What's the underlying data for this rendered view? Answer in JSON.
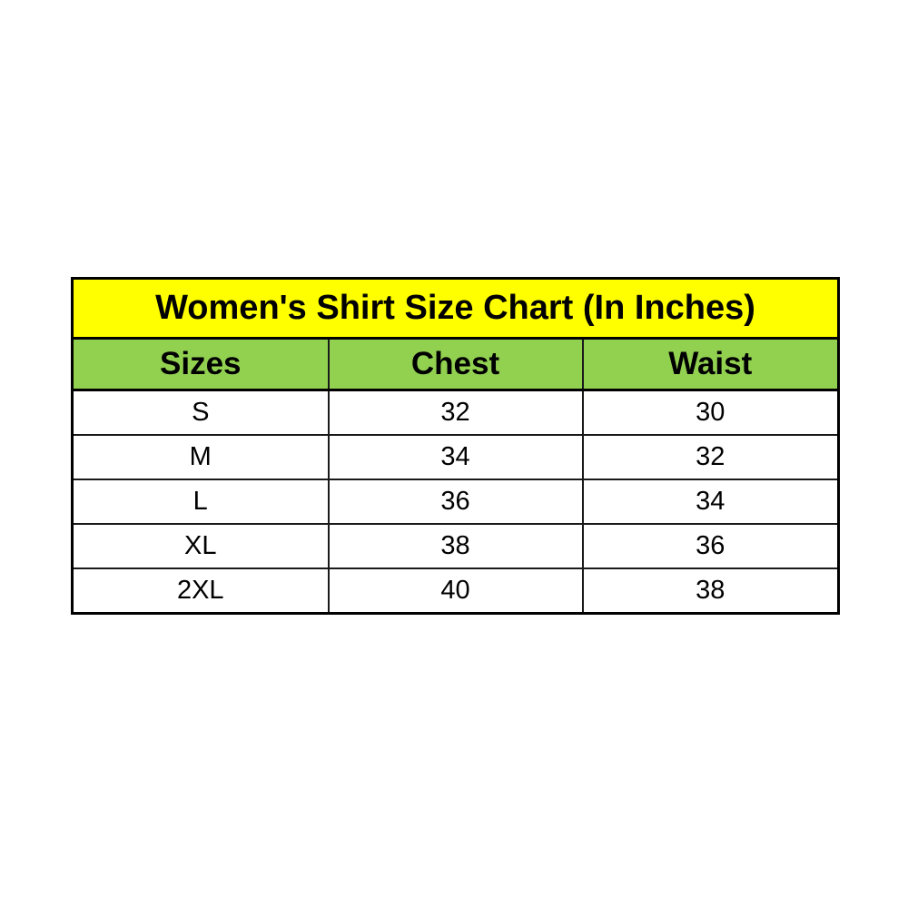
{
  "chart_data": {
    "type": "table",
    "title": "Women's Shirt Size Chart (In Inches)",
    "columns": [
      "Sizes",
      "Chest",
      "Waist"
    ],
    "rows": [
      [
        "S",
        "32",
        "30"
      ],
      [
        "M",
        "34",
        "32"
      ],
      [
        "L",
        "36",
        "34"
      ],
      [
        "XL",
        "38",
        "36"
      ],
      [
        "2XL",
        "40",
        "38"
      ]
    ],
    "layout_hints": {
      "title_bg": "#ffff00",
      "header_bg": "#92d050",
      "row_bg": "#ffffff",
      "border_color": "#000000",
      "text_color": "#000000",
      "page_bg": "#ffffff"
    }
  }
}
